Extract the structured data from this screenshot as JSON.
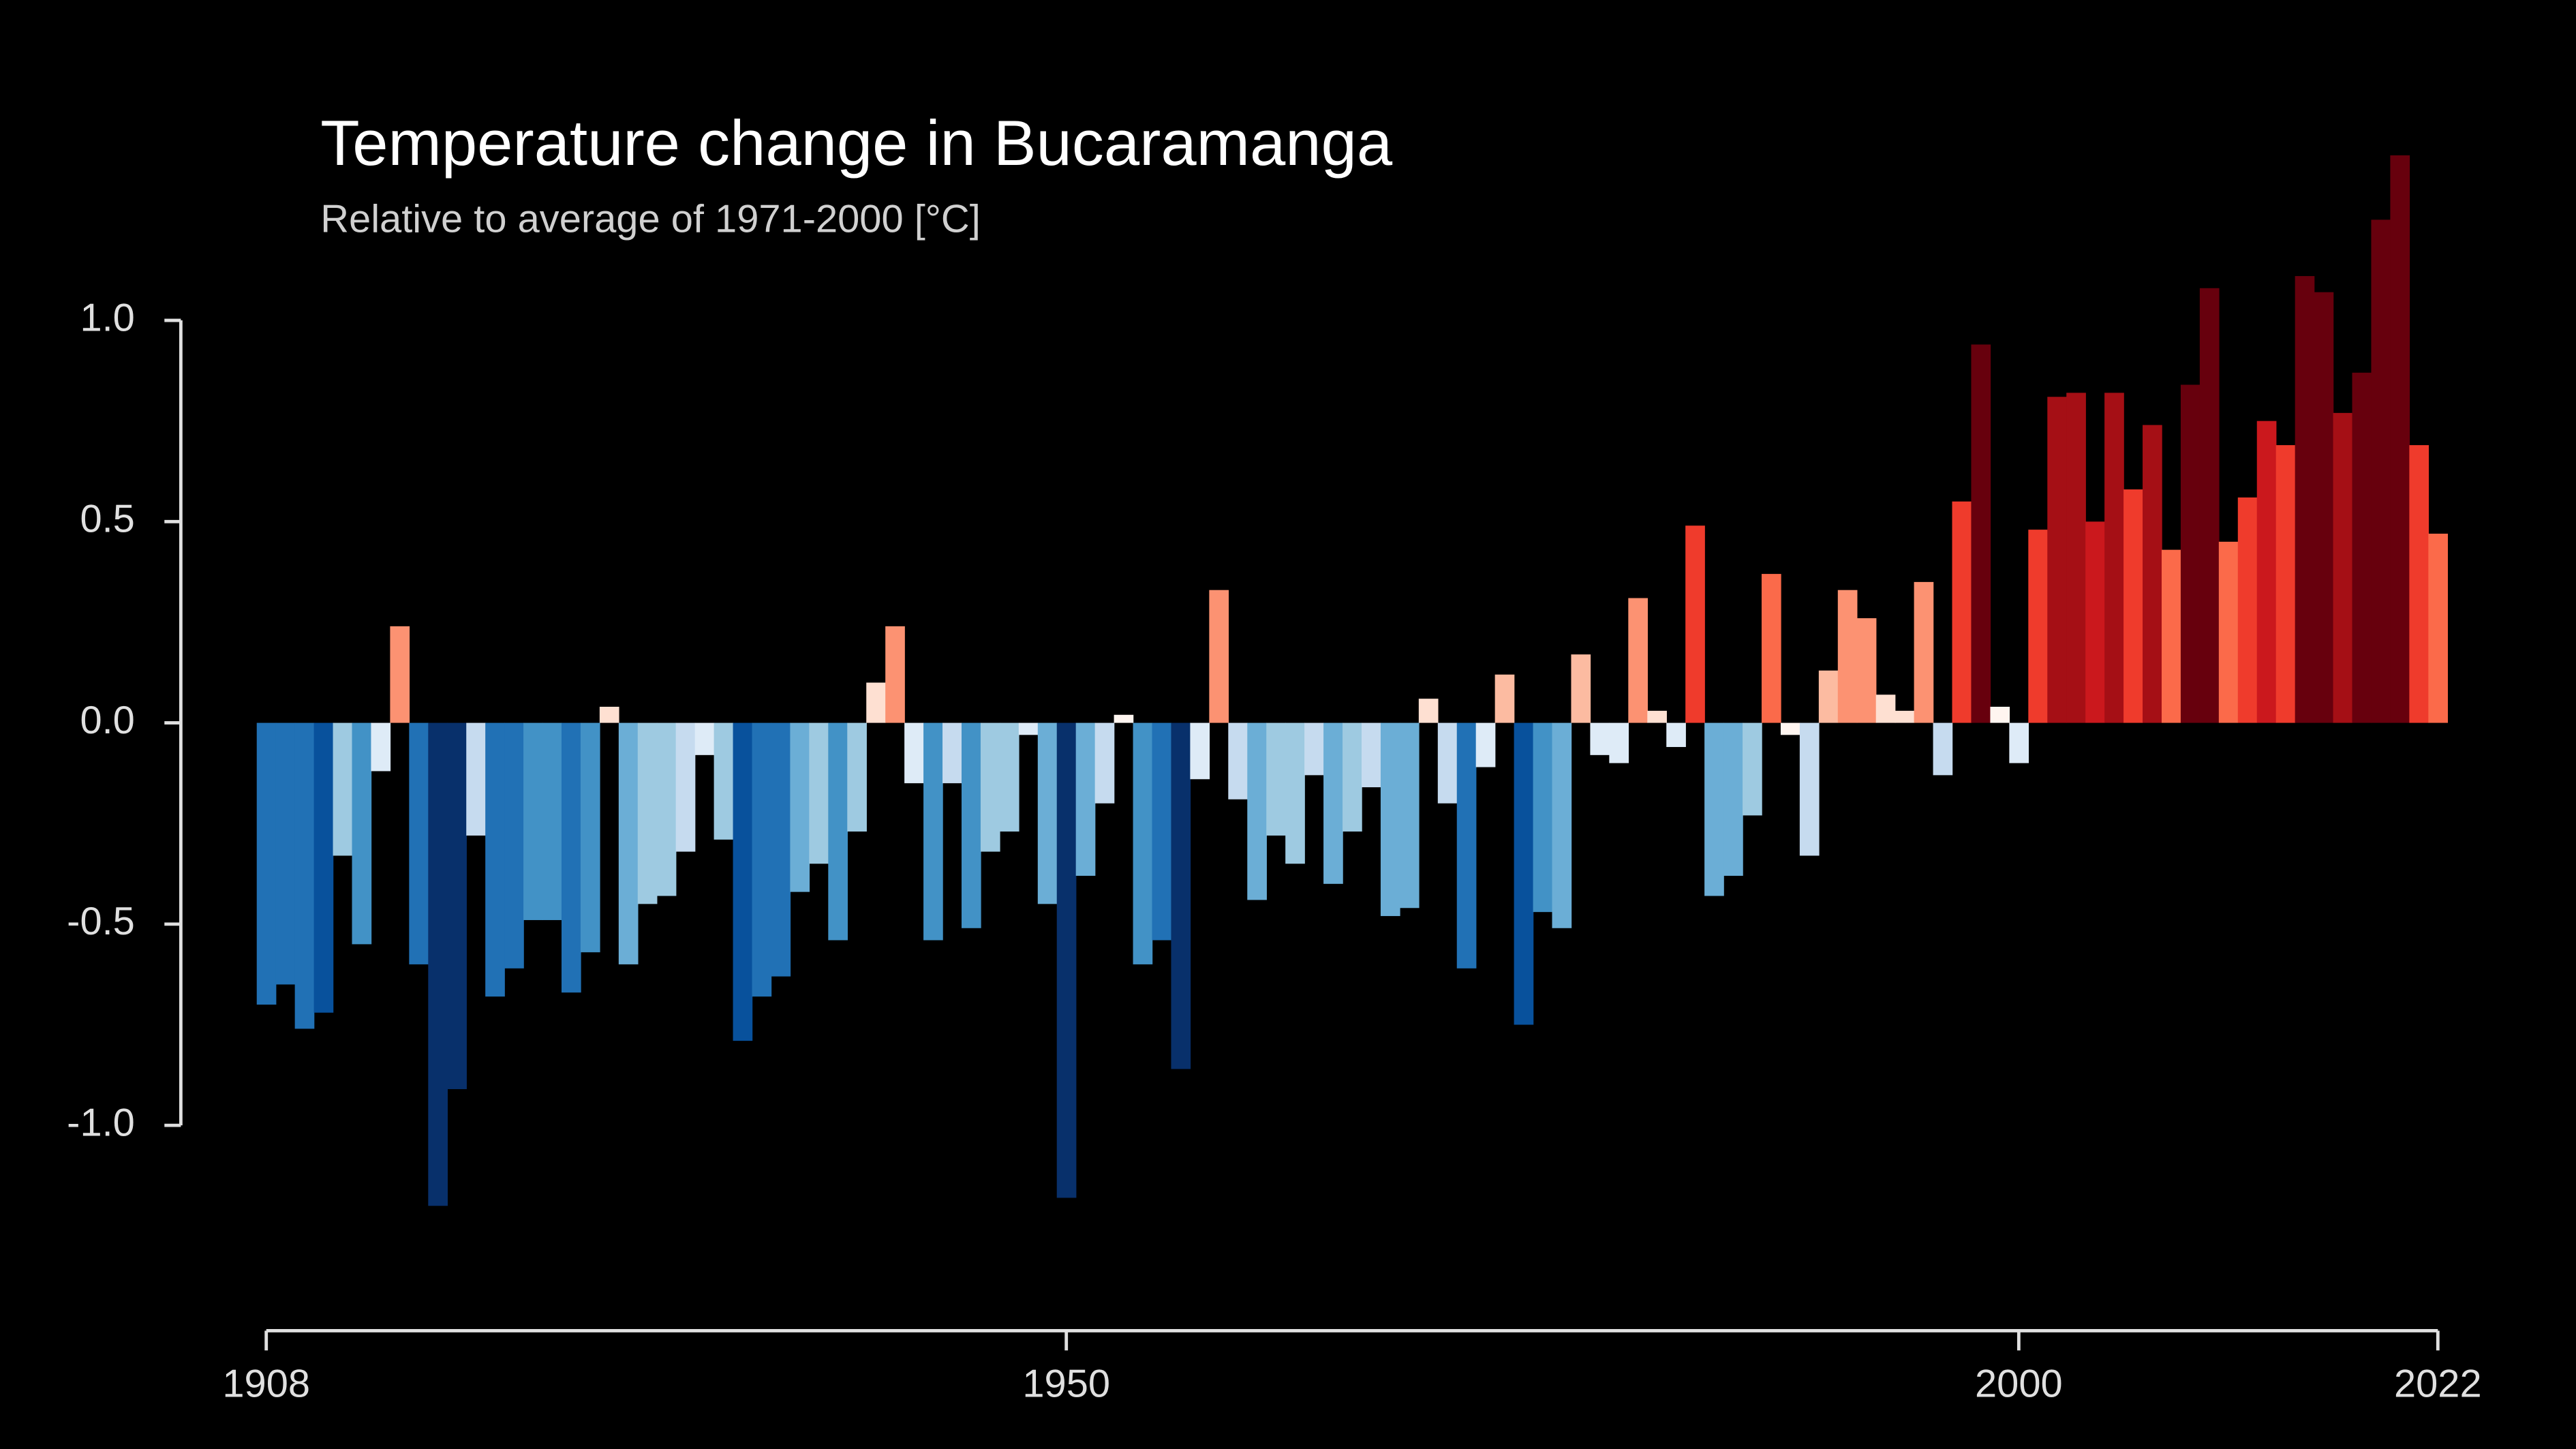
{
  "chart_data": {
    "type": "bar",
    "title": "Temperature change in Bucaramanga",
    "subtitle": "Relative to average of 1971-2000  [°C]",
    "x": [
      1908,
      1909,
      1910,
      1911,
      1912,
      1913,
      1914,
      1915,
      1916,
      1917,
      1918,
      1919,
      1920,
      1921,
      1922,
      1923,
      1924,
      1925,
      1926,
      1927,
      1928,
      1929,
      1930,
      1931,
      1932,
      1933,
      1934,
      1935,
      1936,
      1937,
      1938,
      1939,
      1940,
      1941,
      1942,
      1943,
      1944,
      1945,
      1946,
      1947,
      1948,
      1949,
      1950,
      1951,
      1952,
      1953,
      1954,
      1955,
      1956,
      1957,
      1958,
      1959,
      1960,
      1961,
      1962,
      1963,
      1964,
      1965,
      1966,
      1967,
      1968,
      1969,
      1970,
      1971,
      1972,
      1973,
      1974,
      1975,
      1976,
      1977,
      1978,
      1979,
      1980,
      1981,
      1982,
      1983,
      1984,
      1985,
      1986,
      1987,
      1988,
      1989,
      1990,
      1991,
      1992,
      1993,
      1994,
      1995,
      1996,
      1997,
      1998,
      1999,
      2000,
      2001,
      2002,
      2003,
      2004,
      2005,
      2006,
      2007,
      2008,
      2009,
      2010,
      2011,
      2012,
      2013,
      2014,
      2015,
      2016,
      2017,
      2018,
      2019,
      2020,
      2021,
      2022
    ],
    "values": [
      -0.7,
      -0.65,
      -0.76,
      -0.72,
      -0.33,
      -0.55,
      -0.12,
      0.24,
      -0.6,
      -1.2,
      -0.91,
      -0.28,
      -0.68,
      -0.61,
      -0.49,
      -0.49,
      -0.67,
      -0.57,
      0.04,
      -0.6,
      -0.45,
      -0.43,
      -0.32,
      -0.08,
      -0.29,
      -0.79,
      -0.68,
      -0.63,
      -0.42,
      -0.35,
      -0.54,
      -0.27,
      0.1,
      0.24,
      -0.15,
      -0.54,
      -0.15,
      -0.51,
      -0.32,
      -0.27,
      -0.03,
      -0.45,
      -1.18,
      -0.38,
      -0.2,
      0.02,
      -0.6,
      -0.54,
      -0.86,
      -0.14,
      0.33,
      -0.19,
      -0.44,
      -0.28,
      -0.35,
      -0.13,
      -0.4,
      -0.27,
      -0.16,
      -0.48,
      -0.46,
      0.06,
      -0.2,
      -0.61,
      -0.11,
      0.12,
      -0.75,
      -0.47,
      -0.51,
      0.17,
      -0.08,
      -0.1,
      0.31,
      0.03,
      -0.06,
      0.49,
      -0.43,
      -0.38,
      -0.23,
      0.37,
      -0.03,
      -0.33,
      0.13,
      0.33,
      0.26,
      0.07,
      0.03,
      0.35,
      -0.13,
      0.55,
      0.94,
      0.04,
      -0.1,
      0.48,
      0.81,
      0.82,
      0.5,
      0.82,
      0.58,
      0.74,
      0.43,
      0.84,
      1.08,
      0.45,
      0.56,
      0.75,
      0.69,
      1.11,
      1.07,
      0.77,
      0.87,
      1.25,
      1.41,
      0.69,
      0.47
    ],
    "colors": [
      "#2171b5",
      "#2171b5",
      "#2171b5",
      "#08519c",
      "#9ecae1",
      "#4292c6",
      "#deebf7",
      "#fc9272",
      "#2171b5",
      "#08306b",
      "#08306b",
      "#c6dbef",
      "#2171b5",
      "#2171b5",
      "#4292c6",
      "#4292c6",
      "#2171b5",
      "#4292c6",
      "#fee0d2",
      "#6baed6",
      "#9ecae1",
      "#9ecae1",
      "#c6dbef",
      "#deebf7",
      "#9ecae1",
      "#08519c",
      "#2171b5",
      "#2171b5",
      "#6baed6",
      "#9ecae1",
      "#4292c6",
      "#9ecae1",
      "#fee0d2",
      "#fc9272",
      "#deebf7",
      "#4292c6",
      "#c6dbef",
      "#4292c6",
      "#9ecae1",
      "#9ecae1",
      "#deebf7",
      "#6baed6",
      "#08306b",
      "#6baed6",
      "#c6dbef",
      "#fff5f0",
      "#4292c6",
      "#2171b5",
      "#08306b",
      "#deebf7",
      "#fc9272",
      "#c6dbef",
      "#6baed6",
      "#9ecae1",
      "#9ecae1",
      "#c6dbef",
      "#6baed6",
      "#9ecae1",
      "#c6dbef",
      "#6baed6",
      "#6baed6",
      "#fee0d2",
      "#c6dbef",
      "#2171b5",
      "#deebf7",
      "#fcbba1",
      "#08519c",
      "#4292c6",
      "#6baed6",
      "#fcbba1",
      "#deebf7",
      "#deebf7",
      "#fc9272",
      "#fee0d2",
      "#deebf7",
      "#ef3b2c",
      "#6baed6",
      "#6baed6",
      "#9ecae1",
      "#fb6a4a",
      "#fff5f0",
      "#c6dbef",
      "#fcbba1",
      "#fc9272",
      "#fc9272",
      "#fee0d2",
      "#fee0d2",
      "#fc9272",
      "#c6dbef",
      "#ef3b2c",
      "#67000d",
      "#fff5f0",
      "#deebf7",
      "#ef3b2c",
      "#a50f15",
      "#a50f15",
      "#cb181d",
      "#a50f15",
      "#ef3b2c",
      "#a50f15",
      "#fb6a4a",
      "#67000d",
      "#67000d",
      "#fb6a4a",
      "#ef3b2c",
      "#cb181d",
      "#ef3b2c",
      "#67000d",
      "#67000d",
      "#a50f15",
      "#67000d",
      "#67000d",
      "#67000d",
      "#ef3b2c",
      "#fb6a4a"
    ],
    "xlim": [
      1908,
      2022
    ],
    "xticks": [
      1908,
      1950,
      2000,
      2022
    ],
    "ylim": [
      -1.5,
      1.45
    ],
    "yticks": [
      {
        "value": -1.0,
        "label": "-1.0"
      },
      {
        "value": -0.5,
        "label": "-0.5"
      },
      {
        "value": 0,
        "label": "0.0"
      },
      {
        "value": 0.5,
        "label": "0.5"
      },
      {
        "value": 1.0,
        "label": "1.0"
      }
    ],
    "grid": false
  }
}
